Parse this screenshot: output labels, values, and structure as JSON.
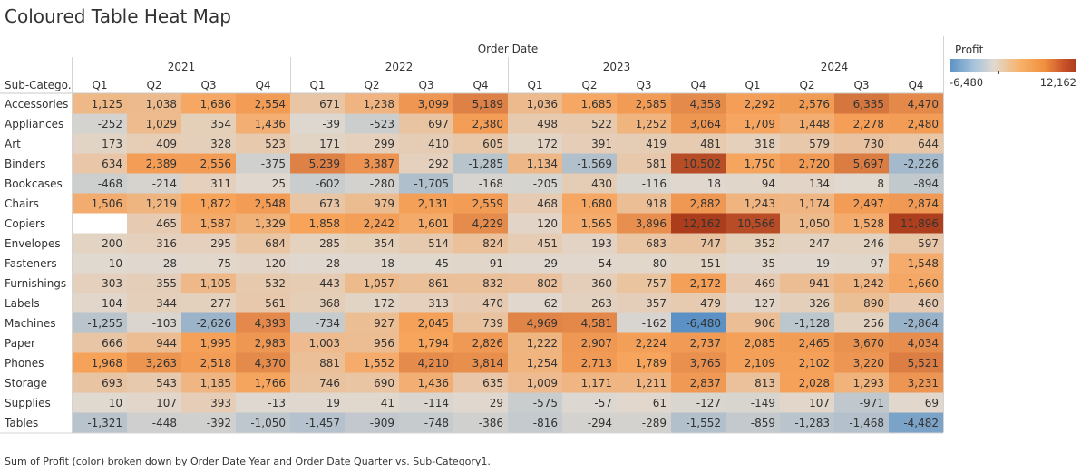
{
  "title": "Coloured Table Heat Map",
  "caption": "Sum of Profit (color) broken down by Order Date Year and Order Date Quarter vs. Sub-Category1.",
  "legend": {
    "title": "Profit",
    "min_label": "-6,480",
    "max_label": "12,162"
  },
  "colors": {
    "neg_end": "#5b91c4",
    "mid": "#e0d9d0",
    "pos_mid": "#f7a35a",
    "pos_end": "#ab3c1c"
  },
  "chart_data": {
    "type": "heatmap",
    "column_header_title": "Order Date",
    "row_header_title": "Sub-Catego..",
    "years": [
      "2021",
      "2022",
      "2023",
      "2024"
    ],
    "quarters": [
      "Q1",
      "Q2",
      "Q3",
      "Q4"
    ],
    "color_range": [
      -6480,
      12162
    ],
    "rows": [
      {
        "label": "Accessories",
        "values": [
          1125,
          1038,
          1686,
          2554,
          671,
          1238,
          3099,
          5189,
          1036,
          1685,
          2585,
          4358,
          2292,
          2576,
          6335,
          4470
        ]
      },
      {
        "label": "Appliances",
        "values": [
          -252,
          1029,
          354,
          1436,
          -39,
          -523,
          697,
          2380,
          498,
          522,
          1252,
          3064,
          1709,
          1448,
          2278,
          2480
        ]
      },
      {
        "label": "Art",
        "values": [
          173,
          409,
          328,
          523,
          171,
          299,
          410,
          605,
          172,
          391,
          419,
          481,
          318,
          579,
          730,
          644
        ]
      },
      {
        "label": "Binders",
        "values": [
          634,
          2389,
          2556,
          -375,
          5239,
          3387,
          292,
          -1285,
          1134,
          -1569,
          581,
          10502,
          1750,
          2720,
          5697,
          -2226
        ]
      },
      {
        "label": "Bookcases",
        "values": [
          -468,
          -214,
          311,
          25,
          -602,
          -280,
          -1705,
          -168,
          -205,
          430,
          -116,
          18,
          94,
          134,
          8,
          -894
        ]
      },
      {
        "label": "Chairs",
        "values": [
          1506,
          1219,
          1872,
          2548,
          673,
          979,
          2131,
          2559,
          468,
          1680,
          918,
          2882,
          1243,
          1174,
          2497,
          2874
        ]
      },
      {
        "label": "Copiers",
        "values": [
          null,
          465,
          1587,
          1329,
          1858,
          2242,
          1601,
          4229,
          120,
          1565,
          3896,
          12162,
          10566,
          1050,
          1528,
          11896
        ]
      },
      {
        "label": "Envelopes",
        "values": [
          200,
          316,
          295,
          684,
          285,
          354,
          514,
          824,
          451,
          193,
          683,
          747,
          352,
          247,
          246,
          597
        ]
      },
      {
        "label": "Fasteners",
        "values": [
          10,
          28,
          75,
          120,
          28,
          18,
          45,
          91,
          29,
          54,
          80,
          151,
          35,
          19,
          97,
          1548
        ]
      },
      {
        "label": "Furnishings",
        "values": [
          303,
          355,
          1105,
          532,
          443,
          1057,
          861,
          832,
          802,
          360,
          757,
          2172,
          469,
          941,
          1242,
          1660
        ]
      },
      {
        "label": "Labels",
        "values": [
          104,
          344,
          277,
          561,
          368,
          172,
          313,
          470,
          62,
          263,
          357,
          479,
          127,
          326,
          890,
          460
        ]
      },
      {
        "label": "Machines",
        "values": [
          -1255,
          -103,
          -2626,
          4393,
          -734,
          927,
          2045,
          739,
          4969,
          4581,
          -162,
          -6480,
          906,
          -1128,
          256,
          -2864
        ]
      },
      {
        "label": "Paper",
        "values": [
          666,
          944,
          1995,
          2983,
          1003,
          956,
          1794,
          2826,
          1222,
          2907,
          2224,
          2737,
          2085,
          2465,
          3670,
          4034
        ]
      },
      {
        "label": "Phones",
        "values": [
          1968,
          3263,
          2518,
          4370,
          881,
          1552,
          4210,
          3814,
          1254,
          2713,
          1789,
          3765,
          2109,
          2102,
          3220,
          5521
        ]
      },
      {
        "label": "Storage",
        "values": [
          693,
          543,
          1185,
          1766,
          746,
          690,
          1436,
          635,
          1009,
          1171,
          1211,
          2837,
          813,
          2028,
          1293,
          3231
        ]
      },
      {
        "label": "Supplies",
        "values": [
          10,
          107,
          393,
          -13,
          19,
          41,
          -114,
          29,
          -575,
          -57,
          61,
          -127,
          -149,
          107,
          -971,
          69
        ]
      },
      {
        "label": "Tables",
        "values": [
          -1321,
          -448,
          -392,
          -1050,
          -1457,
          -909,
          -748,
          -386,
          -816,
          -294,
          -289,
          -1552,
          -859,
          -1283,
          -1468,
          -4482
        ]
      }
    ]
  }
}
